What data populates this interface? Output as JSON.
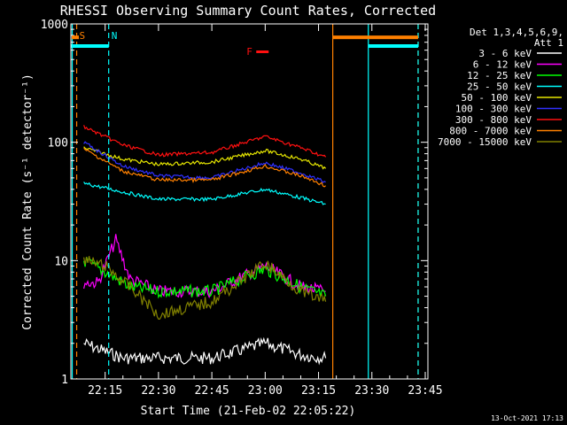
{
  "chart_data": {
    "type": "line",
    "title": "RHESSI Observing Summary Count Rates, Corrected",
    "xlabel": "Start Time (21-Feb-02 22:05:22)",
    "ylabel": "Corrected Count Rate (s⁻¹ detector⁻¹)",
    "yscale": "log",
    "ylim": [
      1,
      1000
    ],
    "xlim": [
      "22:05:22",
      "23:45:45"
    ],
    "x_ticks": [
      "22:15",
      "22:30",
      "22:45",
      "23:00",
      "23:15",
      "23:30",
      "23:45"
    ],
    "y_ticks": [
      "1",
      "10",
      "100",
      "1000"
    ],
    "legend_position": "top-right",
    "legend_header": [
      "Det 1,3,4,5,6,9,",
      "Att 1"
    ],
    "timestamp": "13-Oct-2021 17:13",
    "series": [
      {
        "name": "3 - 6 keV",
        "color": "#ffffff",
        "x": [
          "22:09",
          "22:20",
          "22:30",
          "22:45",
          "23:00",
          "23:10",
          "23:17"
        ],
        "values": [
          2,
          1.5,
          1.5,
          1.5,
          2,
          1.6,
          1.5
        ]
      },
      {
        "name": "6 - 12 keV",
        "color": "#ff00ff",
        "x": [
          "22:09",
          "22:13",
          "22:18",
          "22:22",
          "22:30",
          "22:45",
          "23:00",
          "23:10",
          "23:17"
        ],
        "values": [
          6.5,
          6.5,
          15,
          7,
          5.5,
          5.5,
          9,
          6,
          5.5
        ]
      },
      {
        "name": "12 - 25 keV",
        "color": "#00ff00",
        "x": [
          "22:09",
          "22:15",
          "22:22",
          "22:30",
          "22:45",
          "23:00",
          "23:10",
          "23:17"
        ],
        "values": [
          10,
          8,
          6,
          5.5,
          5.5,
          8.5,
          6,
          5
        ]
      },
      {
        "name": "25 - 50 keV",
        "color": "#00ffff",
        "x": [
          "22:09",
          "22:20",
          "22:30",
          "22:45",
          "23:00",
          "23:10",
          "23:17"
        ],
        "values": [
          45,
          38,
          33,
          33,
          40,
          34,
          30
        ]
      },
      {
        "name": "50 - 100 keV",
        "color": "#e6e600",
        "x": [
          "22:09",
          "22:20",
          "22:30",
          "22:45",
          "23:00",
          "23:10",
          "23:17"
        ],
        "values": [
          90,
          72,
          65,
          68,
          85,
          72,
          60
        ]
      },
      {
        "name": "100 - 300 keV",
        "color": "#3030ff",
        "x": [
          "22:09",
          "22:20",
          "22:30",
          "22:45",
          "23:00",
          "23:10",
          "23:17"
        ],
        "values": [
          100,
          63,
          52,
          50,
          67,
          55,
          46
        ]
      },
      {
        "name": "300 - 800 keV",
        "color": "#ff1010",
        "x": [
          "22:09",
          "22:20",
          "22:30",
          "22:45",
          "23:00",
          "23:10",
          "23:17"
        ],
        "values": [
          135,
          95,
          78,
          82,
          112,
          90,
          75
        ]
      },
      {
        "name": "800 - 7000 keV",
        "color": "#ff8000",
        "x": [
          "22:09",
          "22:20",
          "22:30",
          "22:45",
          "23:00",
          "23:10",
          "23:17"
        ],
        "values": [
          88,
          57,
          48,
          48,
          63,
          52,
          43
        ]
      },
      {
        "name": "7000 - 15000 keV",
        "color": "#808000",
        "x": [
          "22:09",
          "22:15",
          "22:22",
          "22:30",
          "22:45",
          "23:00",
          "23:10",
          "23:17"
        ],
        "values": [
          10,
          9,
          6,
          3.5,
          4.5,
          9.5,
          5.5,
          4.5
        ]
      }
    ],
    "annotations": [
      {
        "label": "S",
        "color": "#ff8000",
        "x": "22:07"
      },
      {
        "label": "N",
        "color": "#00ffff",
        "x": "22:16"
      },
      {
        "label": "F",
        "color": "#ff1010",
        "x": "22:54"
      }
    ],
    "markers": {
      "eclipse_bars": [
        {
          "color": "#00ffff",
          "x": [
            "22:05:22",
            "22:16"
          ],
          "y": 650
        },
        {
          "color": "#ff8000",
          "x": [
            "23:19",
            "23:43"
          ],
          "y": 770
        },
        {
          "color": "#00ffff",
          "x": [
            "23:29",
            "23:43"
          ],
          "y": 650
        }
      ],
      "vlines": [
        {
          "x": "22:05:45",
          "color": "#00ffff",
          "style": "solid"
        },
        {
          "x": "22:07",
          "color": "#ff8000",
          "style": "dashed"
        },
        {
          "x": "22:16",
          "color": "#00ffff",
          "style": "dashed"
        },
        {
          "x": "23:19",
          "color": "#ff8000",
          "style": "solid"
        },
        {
          "x": "23:29",
          "color": "#00ffff",
          "style": "solid"
        },
        {
          "x": "23:43",
          "color": "#ff8000",
          "style": "dashed"
        },
        {
          "x": "23:43",
          "color": "#00ffff",
          "style": "dashed"
        }
      ]
    }
  }
}
